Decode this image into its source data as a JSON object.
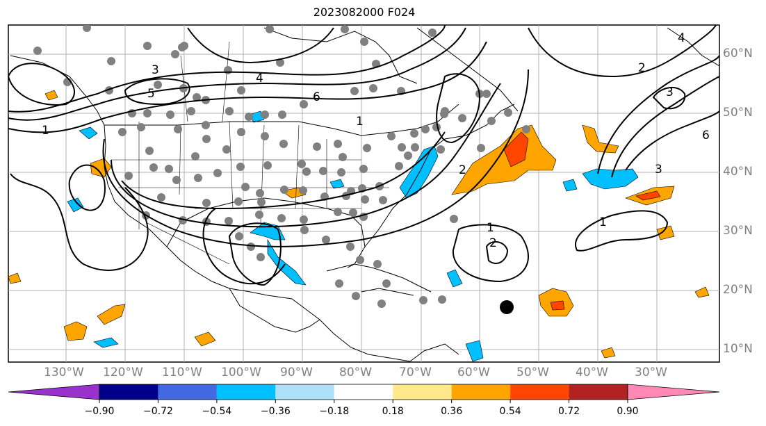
{
  "title": "2023082000 F024",
  "map": {
    "lon_labels": [
      "130°W",
      "120°W",
      "110°W",
      "100°W",
      "90°W",
      "80°W",
      "70°W",
      "60°W",
      "50°W",
      "40°W",
      "30°W"
    ],
    "lat_labels": [
      "60°N",
      "50°N",
      "40°N",
      "30°N",
      "20°N",
      "10°N"
    ],
    "contour_labels": [
      "1",
      "2",
      "3",
      "4",
      "5",
      "6",
      "1",
      "1",
      "2",
      "3",
      "4",
      "6",
      "2",
      "3",
      "1"
    ],
    "storm_marker": "black-dot"
  },
  "colorbar": {
    "ticks": [
      "−0.90",
      "−0.72",
      "−0.54",
      "−0.36",
      "−0.18",
      "0.18",
      "0.36",
      "0.54",
      "0.72",
      "0.90"
    ],
    "colors": [
      "#9932cc",
      "#00008b",
      "#4169e1",
      "#00bfff",
      "#afe0fa",
      "#ffffff",
      "#ffe88a",
      "#ffa500",
      "#ff4500",
      "#b22222",
      "#ff89b4"
    ]
  }
}
